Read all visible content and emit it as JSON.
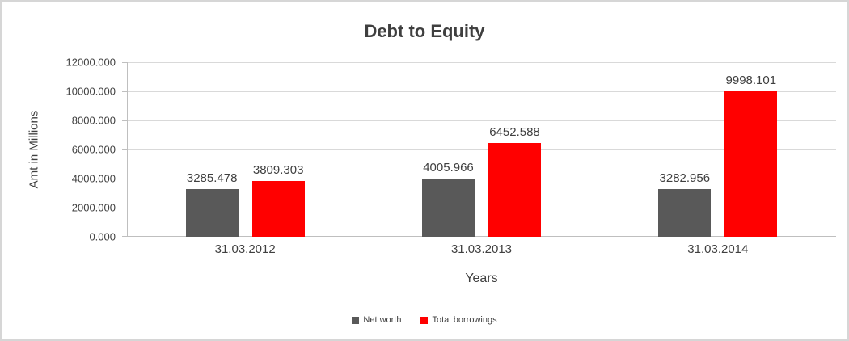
{
  "chart_data": {
    "type": "bar",
    "title": "Debt to Equity",
    "xlabel": "Years",
    "ylabel": "Amt in Millions",
    "categories": [
      "31.03.2012",
      "31.03.2013",
      "31.03.2014"
    ],
    "series": [
      {
        "name": "Net worth",
        "color": "#595959",
        "values": [
          3285.478,
          4005.966,
          3282.956
        ]
      },
      {
        "name": "Total borrowings",
        "color": "#ff0000",
        "values": [
          3809.303,
          6452.588,
          9998.101
        ]
      }
    ],
    "ylim": [
      0,
      12000
    ],
    "ytick_step": 2000,
    "ytick_labels": [
      "0.000",
      "2000.000",
      "4000.000",
      "6000.000",
      "8000.000",
      "10000.000",
      "12000.000"
    ],
    "grid": true,
    "legend_position": "bottom"
  }
}
